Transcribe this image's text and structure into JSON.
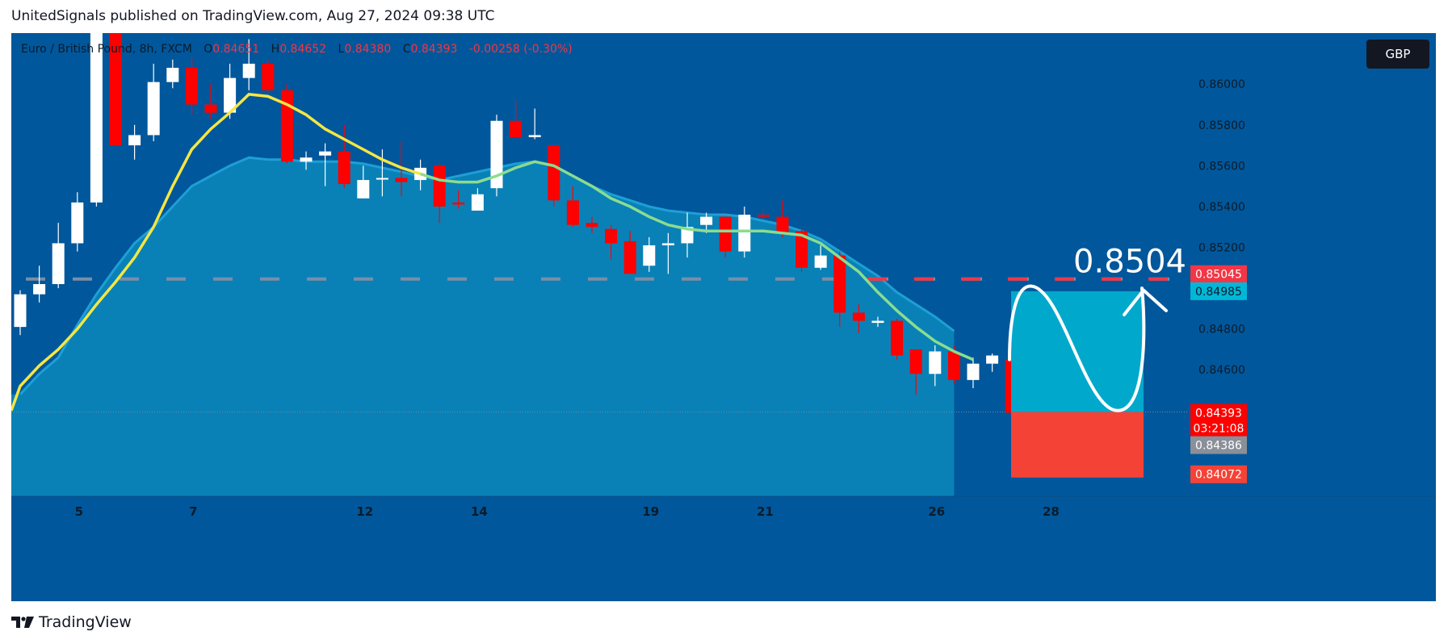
{
  "header": {
    "publisher_line": "UnitedSignals published on TradingView.com, Aug 27, 2024 09:38 UTC"
  },
  "legend": {
    "symbol_line": "Euro / British Pound, 8h, FXCM",
    "open_label": "O",
    "open_value": "0.84651",
    "high_label": "H",
    "high_value": "0.84652",
    "low_label": "L",
    "low_value": "0.84380",
    "close_label": "C",
    "close_value": "0.84393",
    "change_value": "-0.00258 (-0.30%)"
  },
  "currency_badge": "GBP",
  "annotation": {
    "target_text": "0.8504"
  },
  "price_tags": {
    "target": "0.85045",
    "cyan": "0.84985",
    "last": "0.84393",
    "countdown": "03:21:08",
    "gray": "0.84386",
    "stop": "0.84072"
  },
  "footer": {
    "brand": "TradingView"
  },
  "colors": {
    "background": "#01579b",
    "up_candle": "#ffffff",
    "down_candle": "#ff0000",
    "ma_yellow": "#f5e642",
    "ma_green": "#8bdc8f",
    "band_fill": "#0a84b8",
    "target_zone": "#00a8cc",
    "stop_zone": "#f44336",
    "dashed_line": "#f23645"
  },
  "chart_data": {
    "type": "candlestick",
    "symbol": "Euro / British Pound",
    "timeframe": "8h",
    "y_axis_ticks": [
      0.846,
      0.848,
      0.852,
      0.854,
      0.856,
      0.858,
      0.86
    ],
    "y_axis_tick_labels": [
      "0.84600",
      "0.84800",
      "0.85200",
      "0.85400",
      "0.85600",
      "0.85800",
      "0.86000"
    ],
    "ylim": [
      0.8398,
      0.8625
    ],
    "x_axis_ticks": [
      {
        "label": "5",
        "index": 3
      },
      {
        "label": "7",
        "index": 9
      },
      {
        "label": "12",
        "index": 18
      },
      {
        "label": "14",
        "index": 24
      },
      {
        "label": "19",
        "index": 33
      },
      {
        "label": "21",
        "index": 39
      },
      {
        "label": "26",
        "index": 48
      },
      {
        "label": "28",
        "index": 54
      }
    ],
    "candles": [
      {
        "o": 0.8481,
        "h": 0.8499,
        "l": 0.8477,
        "c": 0.8497
      },
      {
        "o": 0.8497,
        "h": 0.8511,
        "l": 0.8493,
        "c": 0.8502
      },
      {
        "o": 0.8502,
        "h": 0.8532,
        "l": 0.85,
        "c": 0.8522
      },
      {
        "o": 0.8522,
        "h": 0.8547,
        "l": 0.8518,
        "c": 0.8542
      },
      {
        "o": 0.8542,
        "h": 0.863,
        "l": 0.854,
        "c": 0.8625
      },
      {
        "o": 0.8625,
        "h": 0.863,
        "l": 0.857,
        "c": 0.857
      },
      {
        "o": 0.857,
        "h": 0.858,
        "l": 0.8563,
        "c": 0.8575
      },
      {
        "o": 0.8575,
        "h": 0.861,
        "l": 0.8572,
        "c": 0.8601
      },
      {
        "o": 0.8601,
        "h": 0.8612,
        "l": 0.8598,
        "c": 0.8608
      },
      {
        "o": 0.8608,
        "h": 0.8613,
        "l": 0.8585,
        "c": 0.859
      },
      {
        "o": 0.859,
        "h": 0.86,
        "l": 0.8583,
        "c": 0.8586
      },
      {
        "o": 0.8586,
        "h": 0.861,
        "l": 0.8583,
        "c": 0.8603
      },
      {
        "o": 0.8603,
        "h": 0.8622,
        "l": 0.8597,
        "c": 0.861
      },
      {
        "o": 0.861,
        "h": 0.8612,
        "l": 0.8596,
        "c": 0.8597
      },
      {
        "o": 0.8597,
        "h": 0.86,
        "l": 0.8561,
        "c": 0.8562
      },
      {
        "o": 0.8562,
        "h": 0.8567,
        "l": 0.8558,
        "c": 0.8564
      },
      {
        "o": 0.8565,
        "h": 0.8571,
        "l": 0.855,
        "c": 0.8567
      },
      {
        "o": 0.8567,
        "h": 0.858,
        "l": 0.8549,
        "c": 0.8551
      },
      {
        "o": 0.8544,
        "h": 0.856,
        "l": 0.8544,
        "c": 0.8553
      },
      {
        "o": 0.8554,
        "h": 0.8568,
        "l": 0.8545,
        "c": 0.8554
      },
      {
        "o": 0.8554,
        "h": 0.8572,
        "l": 0.8545,
        "c": 0.8552
      },
      {
        "o": 0.8553,
        "h": 0.8563,
        "l": 0.8548,
        "c": 0.8559
      },
      {
        "o": 0.856,
        "h": 0.8561,
        "l": 0.8532,
        "c": 0.854
      },
      {
        "o": 0.8542,
        "h": 0.8548,
        "l": 0.8539,
        "c": 0.8541
      },
      {
        "o": 0.8538,
        "h": 0.8549,
        "l": 0.8538,
        "c": 0.8546
      },
      {
        "o": 0.8549,
        "h": 0.8585,
        "l": 0.8545,
        "c": 0.8582
      },
      {
        "o": 0.8582,
        "h": 0.8592,
        "l": 0.8575,
        "c": 0.8574
      },
      {
        "o": 0.8574,
        "h": 0.8588,
        "l": 0.8573,
        "c": 0.8575
      },
      {
        "o": 0.857,
        "h": 0.857,
        "l": 0.854,
        "c": 0.8543
      },
      {
        "o": 0.8543,
        "h": 0.855,
        "l": 0.853,
        "c": 0.8531
      },
      {
        "o": 0.8532,
        "h": 0.8535,
        "l": 0.8527,
        "c": 0.853
      },
      {
        "o": 0.8529,
        "h": 0.8531,
        "l": 0.8514,
        "c": 0.8522
      },
      {
        "o": 0.8523,
        "h": 0.8528,
        "l": 0.8507,
        "c": 0.8507
      },
      {
        "o": 0.8511,
        "h": 0.8525,
        "l": 0.8508,
        "c": 0.8521
      },
      {
        "o": 0.8521,
        "h": 0.8527,
        "l": 0.8507,
        "c": 0.8522
      },
      {
        "o": 0.8522,
        "h": 0.8537,
        "l": 0.8515,
        "c": 0.853
      },
      {
        "o": 0.8531,
        "h": 0.8537,
        "l": 0.8527,
        "c": 0.8535
      },
      {
        "o": 0.8535,
        "h": 0.8535,
        "l": 0.8515,
        "c": 0.8518
      },
      {
        "o": 0.8518,
        "h": 0.854,
        "l": 0.8515,
        "c": 0.8536
      },
      {
        "o": 0.8536,
        "h": 0.8539,
        "l": 0.8534,
        "c": 0.8535
      },
      {
        "o": 0.8535,
        "h": 0.8543,
        "l": 0.8525,
        "c": 0.8527
      },
      {
        "o": 0.8528,
        "h": 0.853,
        "l": 0.8508,
        "c": 0.851
      },
      {
        "o": 0.851,
        "h": 0.8521,
        "l": 0.8509,
        "c": 0.8516
      },
      {
        "o": 0.8516,
        "h": 0.8518,
        "l": 0.8481,
        "c": 0.8488
      },
      {
        "o": 0.8488,
        "h": 0.8492,
        "l": 0.8478,
        "c": 0.8484
      },
      {
        "o": 0.8483,
        "h": 0.8486,
        "l": 0.8481,
        "c": 0.8484
      },
      {
        "o": 0.8484,
        "h": 0.8485,
        "l": 0.8465,
        "c": 0.8467
      },
      {
        "o": 0.847,
        "h": 0.847,
        "l": 0.8448,
        "c": 0.8458
      },
      {
        "o": 0.8458,
        "h": 0.8472,
        "l": 0.8452,
        "c": 0.8469
      },
      {
        "o": 0.8469,
        "h": 0.8472,
        "l": 0.8453,
        "c": 0.8455
      },
      {
        "o": 0.8455,
        "h": 0.8466,
        "l": 0.8451,
        "c": 0.8463
      },
      {
        "o": 0.8463,
        "h": 0.8468,
        "l": 0.8459,
        "c": 0.8467
      },
      {
        "o": 0.8465,
        "h": 0.8465,
        "l": 0.8438,
        "c": 0.8439
      }
    ],
    "ma_yellow": [
      0.8452,
      0.8462,
      0.847,
      0.848,
      0.8492,
      0.8503,
      0.8515,
      0.853,
      0.855,
      0.8568,
      0.8578,
      0.8586,
      0.8595,
      0.8594,
      0.859,
      0.8585,
      0.8578,
      0.8573,
      0.8568,
      0.8563,
      0.8559,
      0.8556,
      0.8553,
      0.8552,
      0.8552,
      0.8555,
      0.8559,
      0.8562,
      0.856,
      0.8555,
      0.855,
      0.8544,
      0.854,
      0.8535,
      0.8531,
      0.8529,
      0.8528,
      0.8528,
      0.8528,
      0.8528,
      0.8527,
      0.8526,
      0.8522,
      0.8515,
      0.8508,
      0.8498,
      0.8489,
      0.8481,
      0.8474,
      0.8469,
      0.8465
    ],
    "band_upper": [
      0.8448,
      0.8458,
      0.8466,
      0.8482,
      0.8497,
      0.851,
      0.8522,
      0.853,
      0.854,
      0.855,
      0.8555,
      0.856,
      0.8564,
      0.8563,
      0.8563,
      0.8562,
      0.8562,
      0.8562,
      0.8561,
      0.8559,
      0.8557,
      0.8555,
      0.8553,
      0.8555,
      0.8557,
      0.8559,
      0.8561,
      0.8562,
      0.856,
      0.8555,
      0.855,
      0.8546,
      0.8543,
      0.854,
      0.8538,
      0.8537,
      0.8536,
      0.8536,
      0.8535,
      0.8533,
      0.8531,
      0.8528,
      0.8524,
      0.8518,
      0.8512,
      0.8506,
      0.8498,
      0.8492,
      0.8486,
      0.8479
    ],
    "position_tool": {
      "entry": 0.84393,
      "target": 0.84985,
      "stop": 0.84072
    },
    "horizontal_line": 0.85045,
    "annotation": "0.8504"
  }
}
